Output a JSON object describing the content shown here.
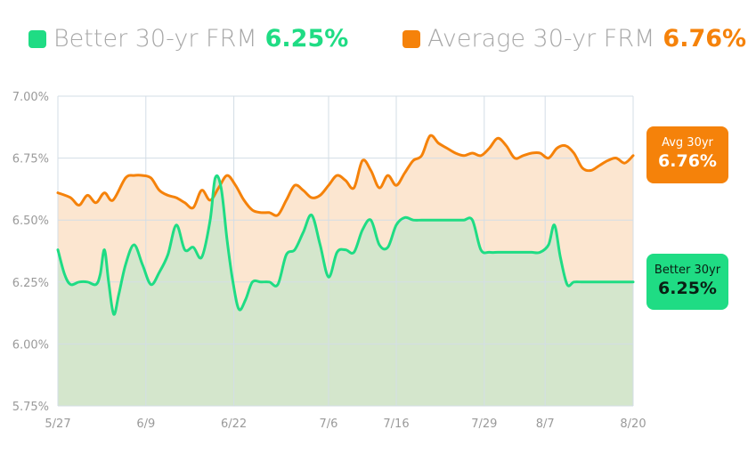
{
  "legend": {
    "better": {
      "label": "Better 30-yr FRM",
      "value": "6.25%",
      "color": "#1fdc84"
    },
    "average": {
      "label": "Average 30-yr FRM",
      "value": "6.76%",
      "color": "#f5820a"
    }
  },
  "callouts": {
    "average": {
      "label": "Avg 30yr",
      "value": "6.76%"
    },
    "better": {
      "label": "Better 30yr",
      "value": "6.25%"
    }
  },
  "chart_data": {
    "type": "area",
    "x_ticks": [
      "5/27",
      "6/9",
      "6/22",
      "7/6",
      "7/16",
      "7/29",
      "8/7",
      "8/20"
    ],
    "y_ticks": [
      "7.00%",
      "6.75%",
      "6.50%",
      "6.25%",
      "6.00%",
      "5.75%"
    ],
    "ylim": [
      5.75,
      7.0
    ],
    "grid": true,
    "x_tick_days": [
      0,
      13,
      26,
      40,
      50,
      63,
      72,
      85
    ],
    "series": [
      {
        "name": "Average 30-yr FRM",
        "color": "#f5820a",
        "fill": "#fce6d0",
        "points": [
          [
            0,
            6.61
          ],
          [
            1.5,
            6.59
          ],
          [
            2.5,
            6.56
          ],
          [
            3.5,
            6.6
          ],
          [
            4.5,
            6.57
          ],
          [
            5.5,
            6.61
          ],
          [
            6.5,
            6.58
          ],
          [
            8,
            6.67
          ],
          [
            9,
            6.68
          ],
          [
            10,
            6.68
          ],
          [
            11,
            6.67
          ],
          [
            12,
            6.62
          ],
          [
            13,
            6.6
          ],
          [
            14,
            6.59
          ],
          [
            15,
            6.57
          ],
          [
            16,
            6.55
          ],
          [
            17,
            6.62
          ],
          [
            18,
            6.58
          ],
          [
            19,
            6.63
          ],
          [
            20,
            6.68
          ],
          [
            21,
            6.64
          ],
          [
            22,
            6.58
          ],
          [
            23,
            6.54
          ],
          [
            24,
            6.53
          ],
          [
            25,
            6.53
          ],
          [
            26,
            6.52
          ],
          [
            27,
            6.58
          ],
          [
            28,
            6.64
          ],
          [
            29,
            6.62
          ],
          [
            30,
            6.59
          ],
          [
            31,
            6.6
          ],
          [
            32,
            6.64
          ],
          [
            33,
            6.68
          ],
          [
            34,
            6.66
          ],
          [
            35,
            6.63
          ],
          [
            36,
            6.74
          ],
          [
            37,
            6.7
          ],
          [
            38,
            6.63
          ],
          [
            39,
            6.68
          ],
          [
            40,
            6.64
          ],
          [
            41,
            6.69
          ],
          [
            42,
            6.74
          ],
          [
            43,
            6.76
          ],
          [
            44,
            6.84
          ],
          [
            45,
            6.81
          ],
          [
            46,
            6.79
          ],
          [
            47,
            6.77
          ],
          [
            48,
            6.76
          ],
          [
            49,
            6.77
          ],
          [
            50,
            6.76
          ],
          [
            51,
            6.79
          ],
          [
            52,
            6.83
          ],
          [
            53,
            6.8
          ],
          [
            54,
            6.75
          ],
          [
            55,
            6.76
          ],
          [
            56,
            6.77
          ],
          [
            57,
            6.77
          ],
          [
            58,
            6.75
          ],
          [
            59,
            6.79
          ],
          [
            60,
            6.8
          ],
          [
            61,
            6.77
          ],
          [
            62,
            6.71
          ],
          [
            63,
            6.7
          ],
          [
            64,
            6.72
          ],
          [
            65,
            6.74
          ],
          [
            66,
            6.75
          ],
          [
            67,
            6.73
          ],
          [
            68,
            6.76
          ]
        ]
      },
      {
        "name": "Better 30-yr FRM",
        "color": "#1fdc84",
        "fill": "#d4e6cc",
        "points": [
          [
            0,
            6.38
          ],
          [
            0.8,
            6.28
          ],
          [
            1.5,
            6.24
          ],
          [
            2.5,
            6.25
          ],
          [
            3.5,
            6.25
          ],
          [
            4.5,
            6.24
          ],
          [
            5,
            6.28
          ],
          [
            5.5,
            6.38
          ],
          [
            6,
            6.25
          ],
          [
            6.6,
            6.12
          ],
          [
            7.2,
            6.2
          ],
          [
            8,
            6.32
          ],
          [
            9,
            6.4
          ],
          [
            10,
            6.32
          ],
          [
            11,
            6.24
          ],
          [
            12,
            6.29
          ],
          [
            13,
            6.36
          ],
          [
            14,
            6.48
          ],
          [
            15,
            6.38
          ],
          [
            16,
            6.39
          ],
          [
            17,
            6.35
          ],
          [
            18,
            6.5
          ],
          [
            18.6,
            6.67
          ],
          [
            19.3,
            6.63
          ],
          [
            20,
            6.42
          ],
          [
            20.7,
            6.25
          ],
          [
            21.4,
            6.14
          ],
          [
            22.2,
            6.18
          ],
          [
            23,
            6.25
          ],
          [
            24,
            6.25
          ],
          [
            25,
            6.25
          ],
          [
            26,
            6.24
          ],
          [
            27,
            6.36
          ],
          [
            28,
            6.38
          ],
          [
            29,
            6.45
          ],
          [
            30,
            6.52
          ],
          [
            31,
            6.4
          ],
          [
            32,
            6.27
          ],
          [
            33,
            6.37
          ],
          [
            34,
            6.38
          ],
          [
            35,
            6.37
          ],
          [
            36,
            6.46
          ],
          [
            37,
            6.5
          ],
          [
            38,
            6.4
          ],
          [
            39,
            6.39
          ],
          [
            40,
            6.48
          ],
          [
            41,
            6.51
          ],
          [
            42,
            6.5
          ],
          [
            43,
            6.5
          ],
          [
            44,
            6.5
          ],
          [
            45,
            6.5
          ],
          [
            46,
            6.5
          ],
          [
            47,
            6.5
          ],
          [
            48,
            6.5
          ],
          [
            49,
            6.5
          ],
          [
            50,
            6.38
          ],
          [
            51,
            6.37
          ],
          [
            52,
            6.37
          ],
          [
            53,
            6.37
          ],
          [
            54,
            6.37
          ],
          [
            55,
            6.37
          ],
          [
            56,
            6.37
          ],
          [
            57,
            6.37
          ],
          [
            58,
            6.4
          ],
          [
            58.7,
            6.48
          ],
          [
            59.4,
            6.35
          ],
          [
            60.2,
            6.24
          ],
          [
            61,
            6.25
          ],
          [
            62,
            6.25
          ],
          [
            63,
            6.25
          ],
          [
            64,
            6.25
          ],
          [
            65,
            6.25
          ],
          [
            66,
            6.25
          ],
          [
            67,
            6.25
          ],
          [
            68,
            6.25
          ]
        ]
      }
    ]
  }
}
